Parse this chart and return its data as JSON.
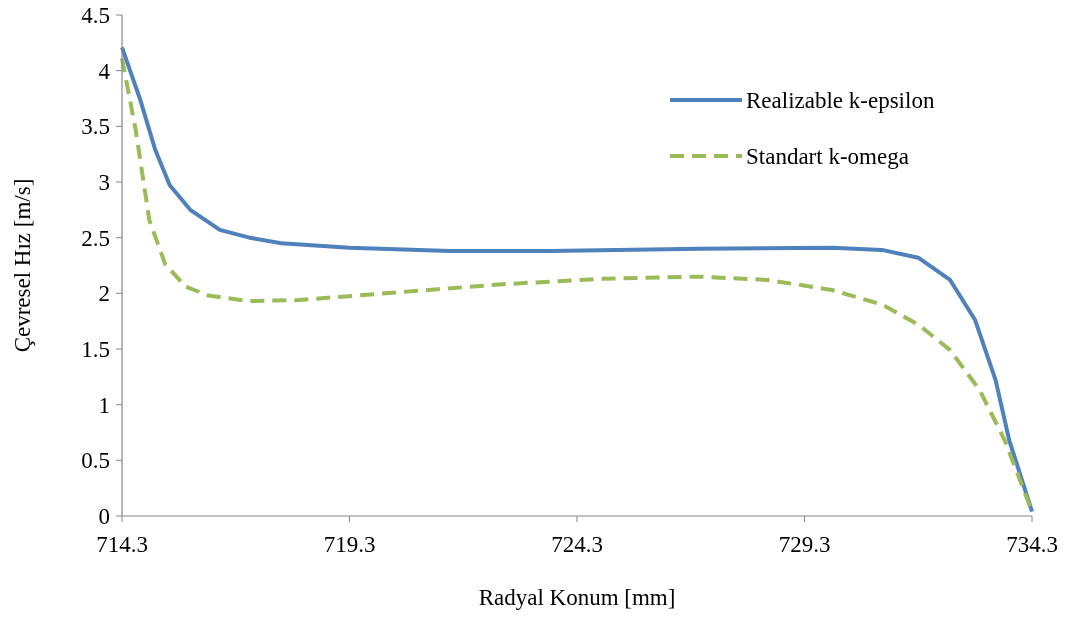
{
  "chart_data": {
    "type": "line",
    "xlabel": "Radyal Konum [mm]",
    "ylabel": "Çevresel Hız [m/s]",
    "xlim": [
      714.3,
      734.3
    ],
    "xticks": [
      714.3,
      719.3,
      724.3,
      729.3,
      734.3
    ],
    "ylim": [
      0,
      4.5
    ],
    "yticks": [
      0,
      0.5,
      1,
      1.5,
      2,
      2.5,
      3,
      3.5,
      4,
      4.5
    ],
    "grid": false,
    "legend": "top right",
    "marker": "none",
    "series": [
      {
        "name": "Realizable k-epsilon",
        "color": "#4f81bd",
        "line_style": "solid",
        "x": [
          714.3,
          714.7,
          715.03,
          715.35,
          715.8,
          716.45,
          717.1,
          717.8,
          719.3,
          721.5,
          723.7,
          727.0,
          729.9,
          731.0,
          731.8,
          732.5,
          733.05,
          733.5,
          733.8,
          734.3
        ],
        "values": [
          4.21,
          3.74,
          3.29,
          2.97,
          2.75,
          2.57,
          2.5,
          2.45,
          2.41,
          2.38,
          2.38,
          2.4,
          2.41,
          2.39,
          2.32,
          2.12,
          1.76,
          1.22,
          0.68,
          0.04
        ]
      },
      {
        "name": "Standart k-omega",
        "color": "#9bbb59",
        "line_style": "dashed",
        "x": [
          714.3,
          714.6,
          714.9,
          715.25,
          715.7,
          716.2,
          717.1,
          718.2,
          720.4,
          722.6,
          724.8,
          727.0,
          728.5,
          729.9,
          731.0,
          731.8,
          732.5,
          733.15,
          733.7,
          734.3
        ],
        "values": [
          4.11,
          3.47,
          2.66,
          2.26,
          2.06,
          1.98,
          1.93,
          1.94,
          2.01,
          2.08,
          2.13,
          2.15,
          2.12,
          2.03,
          1.9,
          1.72,
          1.49,
          1.13,
          0.68,
          0.04
        ]
      }
    ]
  }
}
